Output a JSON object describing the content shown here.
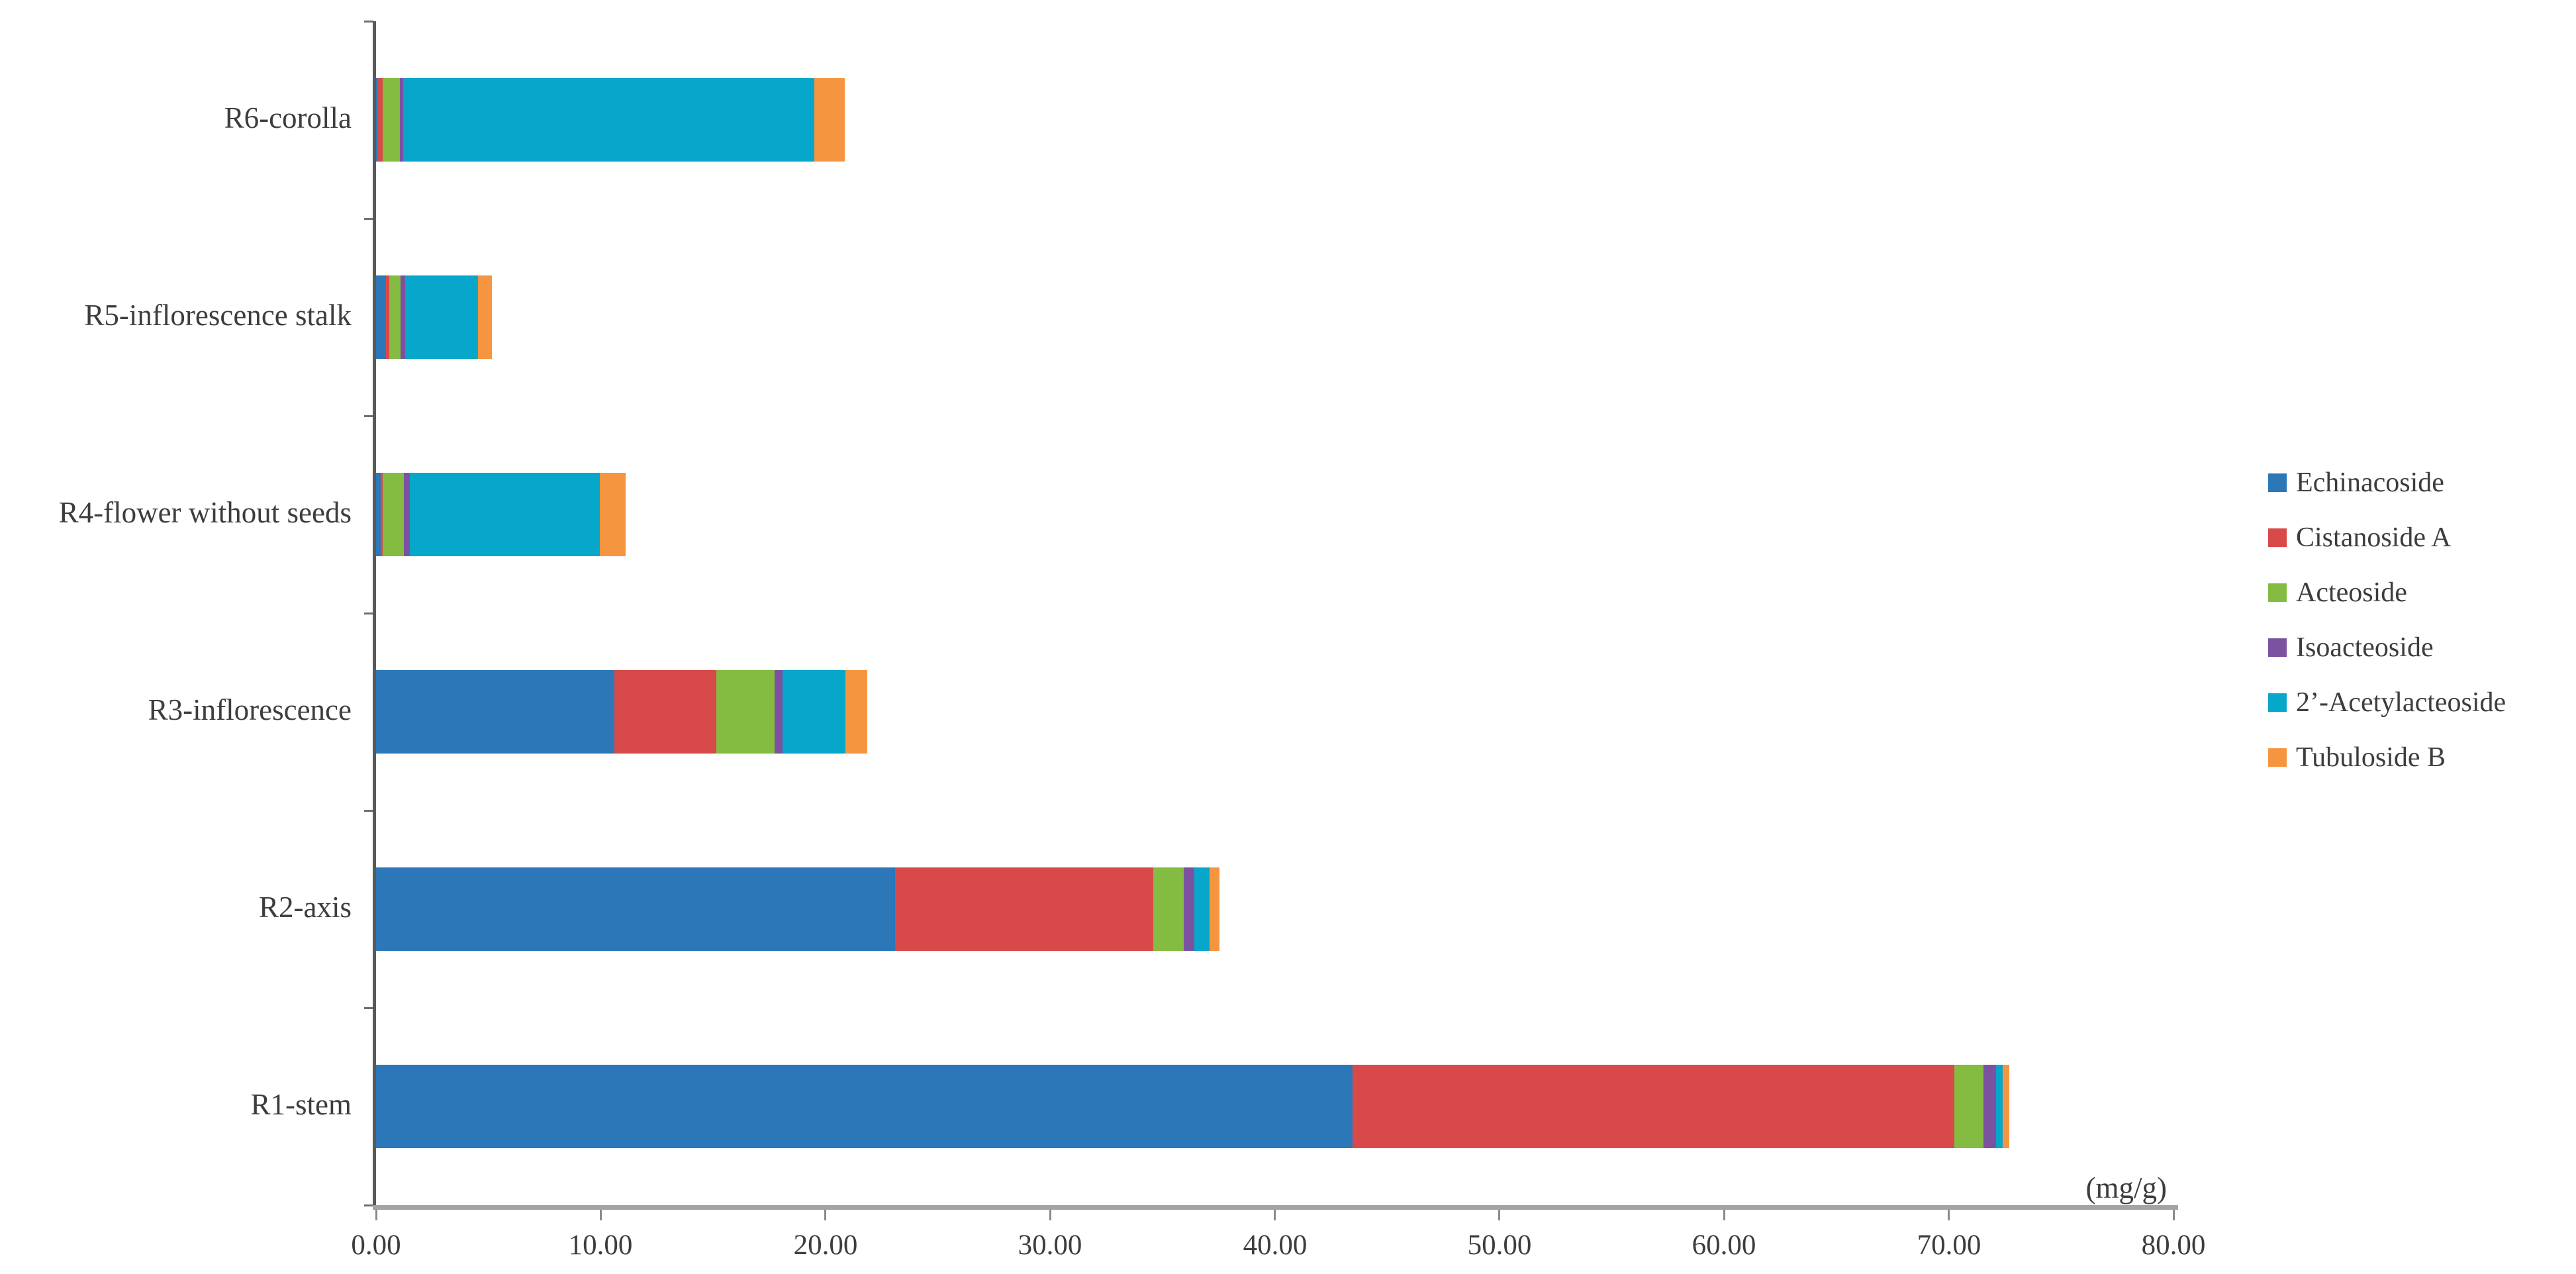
{
  "figure": {
    "unit_label": "(mg/g)"
  },
  "chart_data": {
    "type": "bar",
    "orientation": "horizontal",
    "stacked": true,
    "title": "",
    "xlabel": "(mg/g)",
    "ylabel": "",
    "xlim": [
      0,
      80
    ],
    "x_ticks": [
      0,
      10,
      20,
      30,
      40,
      50,
      60,
      70,
      80
    ],
    "x_tick_labels": [
      "0.00",
      "10.00",
      "20.00",
      "30.00",
      "40.00",
      "50.00",
      "60.00",
      "70.00",
      "80.00"
    ],
    "grid": false,
    "legend_position": "right",
    "categories": [
      "R6-corolla",
      "R5-inflorescence stalk",
      "R4-flower without seeds",
      "R3-inflorescence",
      "R2-axis",
      "R1-stem"
    ],
    "series": [
      {
        "name": "Echinacoside",
        "color": "#2b77b8",
        "values": [
          0.05,
          0.45,
          0.2,
          10.6,
          23.1,
          43.45
        ]
      },
      {
        "name": "Cistanoside A",
        "color": "#d84a49",
        "values": [
          0.25,
          0.15,
          0.1,
          4.55,
          11.5,
          26.8
        ]
      },
      {
        "name": "Acteoside",
        "color": "#84bb41",
        "values": [
          0.75,
          0.5,
          0.95,
          2.6,
          1.35,
          1.3
        ]
      },
      {
        "name": "Isoacteoside",
        "color": "#7b52a0",
        "values": [
          0.15,
          0.2,
          0.26,
          0.35,
          0.47,
          0.55
        ]
      },
      {
        "name": "2’-Acetylacteoside",
        "color": "#07a7cb",
        "values": [
          18.3,
          3.25,
          8.45,
          2.8,
          0.68,
          0.3
        ]
      },
      {
        "name": "Tubuloside B",
        "color": "#f6953f",
        "values": [
          1.35,
          0.6,
          1.15,
          0.95,
          0.44,
          0.3
        ]
      }
    ]
  }
}
